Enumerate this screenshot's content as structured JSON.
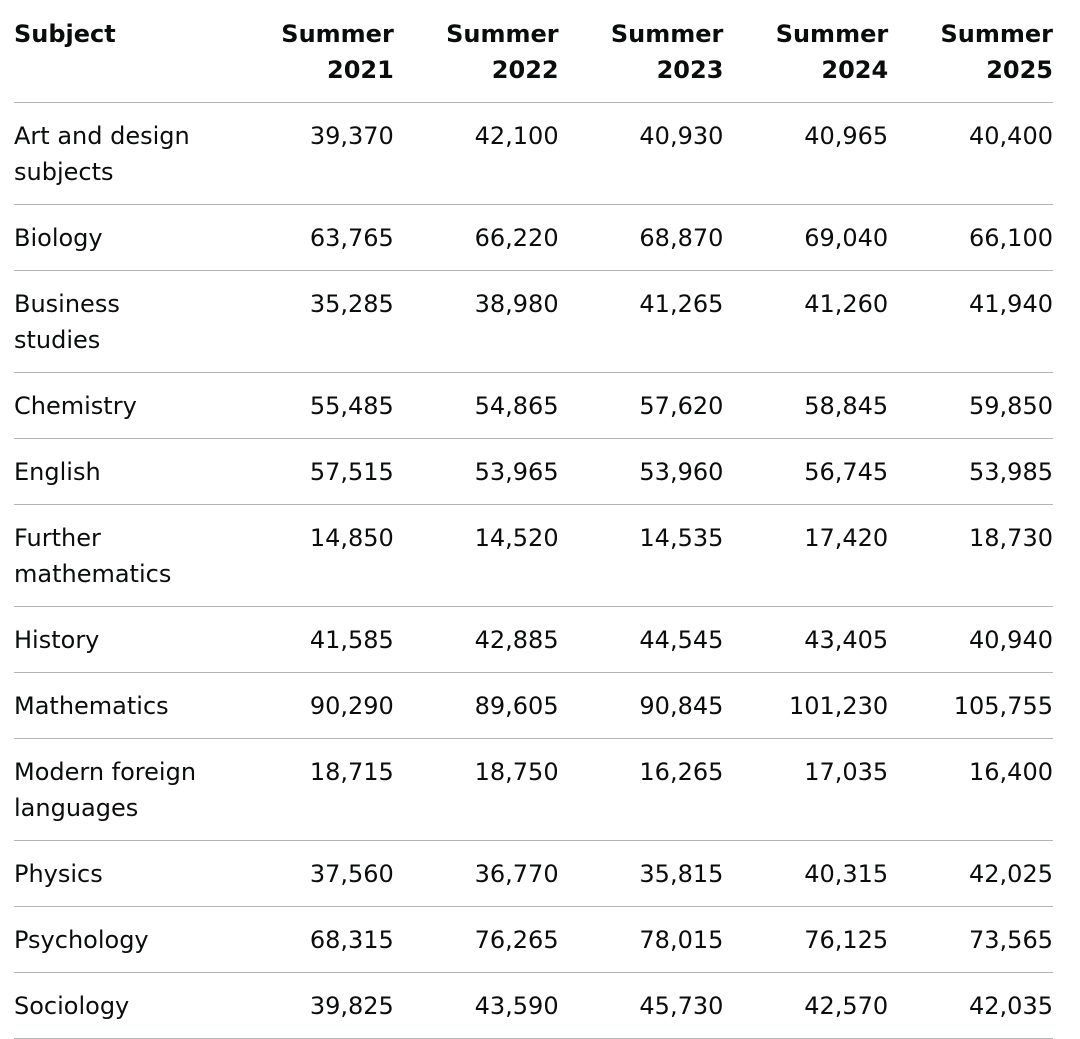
{
  "table": {
    "headers": [
      {
        "line1": "Subject",
        "line2": ""
      },
      {
        "line1": "Summer",
        "line2": "2021"
      },
      {
        "line1": "Summer",
        "line2": "2022"
      },
      {
        "line1": "Summer",
        "line2": "2023"
      },
      {
        "line1": "Summer",
        "line2": "2024"
      },
      {
        "line1": "Summer",
        "line2": "2025"
      }
    ],
    "rows": [
      {
        "subject": "Art and design subjects",
        "values": [
          "39,370",
          "42,100",
          "40,930",
          "40,965",
          "40,400"
        ]
      },
      {
        "subject": "Biology",
        "values": [
          "63,765",
          "66,220",
          "68,870",
          "69,040",
          "66,100"
        ]
      },
      {
        "subject": "Business studies",
        "values": [
          "35,285",
          "38,980",
          "41,265",
          "41,260",
          "41,940"
        ]
      },
      {
        "subject": "Chemistry",
        "values": [
          "55,485",
          "54,865",
          "57,620",
          "58,845",
          "59,850"
        ]
      },
      {
        "subject": "English",
        "values": [
          "57,515",
          "53,965",
          "53,960",
          "56,745",
          "53,985"
        ]
      },
      {
        "subject": "Further mathematics",
        "values": [
          "14,850",
          "14,520",
          "14,535",
          "17,420",
          "18,730"
        ]
      },
      {
        "subject": "History",
        "values": [
          "41,585",
          "42,885",
          "44,545",
          "43,405",
          "40,940"
        ]
      },
      {
        "subject": "Mathematics",
        "values": [
          "90,290",
          "89,605",
          "90,845",
          "101,230",
          "105,755"
        ]
      },
      {
        "subject": "Modern foreign languages",
        "values": [
          "18,715",
          "18,750",
          "16,265",
          "17,035",
          "16,400"
        ]
      },
      {
        "subject": "Physics",
        "values": [
          "37,560",
          "36,770",
          "35,815",
          "40,315",
          "42,025"
        ]
      },
      {
        "subject": "Psychology",
        "values": [
          "68,315",
          "76,265",
          "78,015",
          "76,125",
          "73,565"
        ]
      },
      {
        "subject": "Sociology",
        "values": [
          "39,825",
          "43,590",
          "45,730",
          "42,570",
          "42,035"
        ]
      }
    ]
  }
}
